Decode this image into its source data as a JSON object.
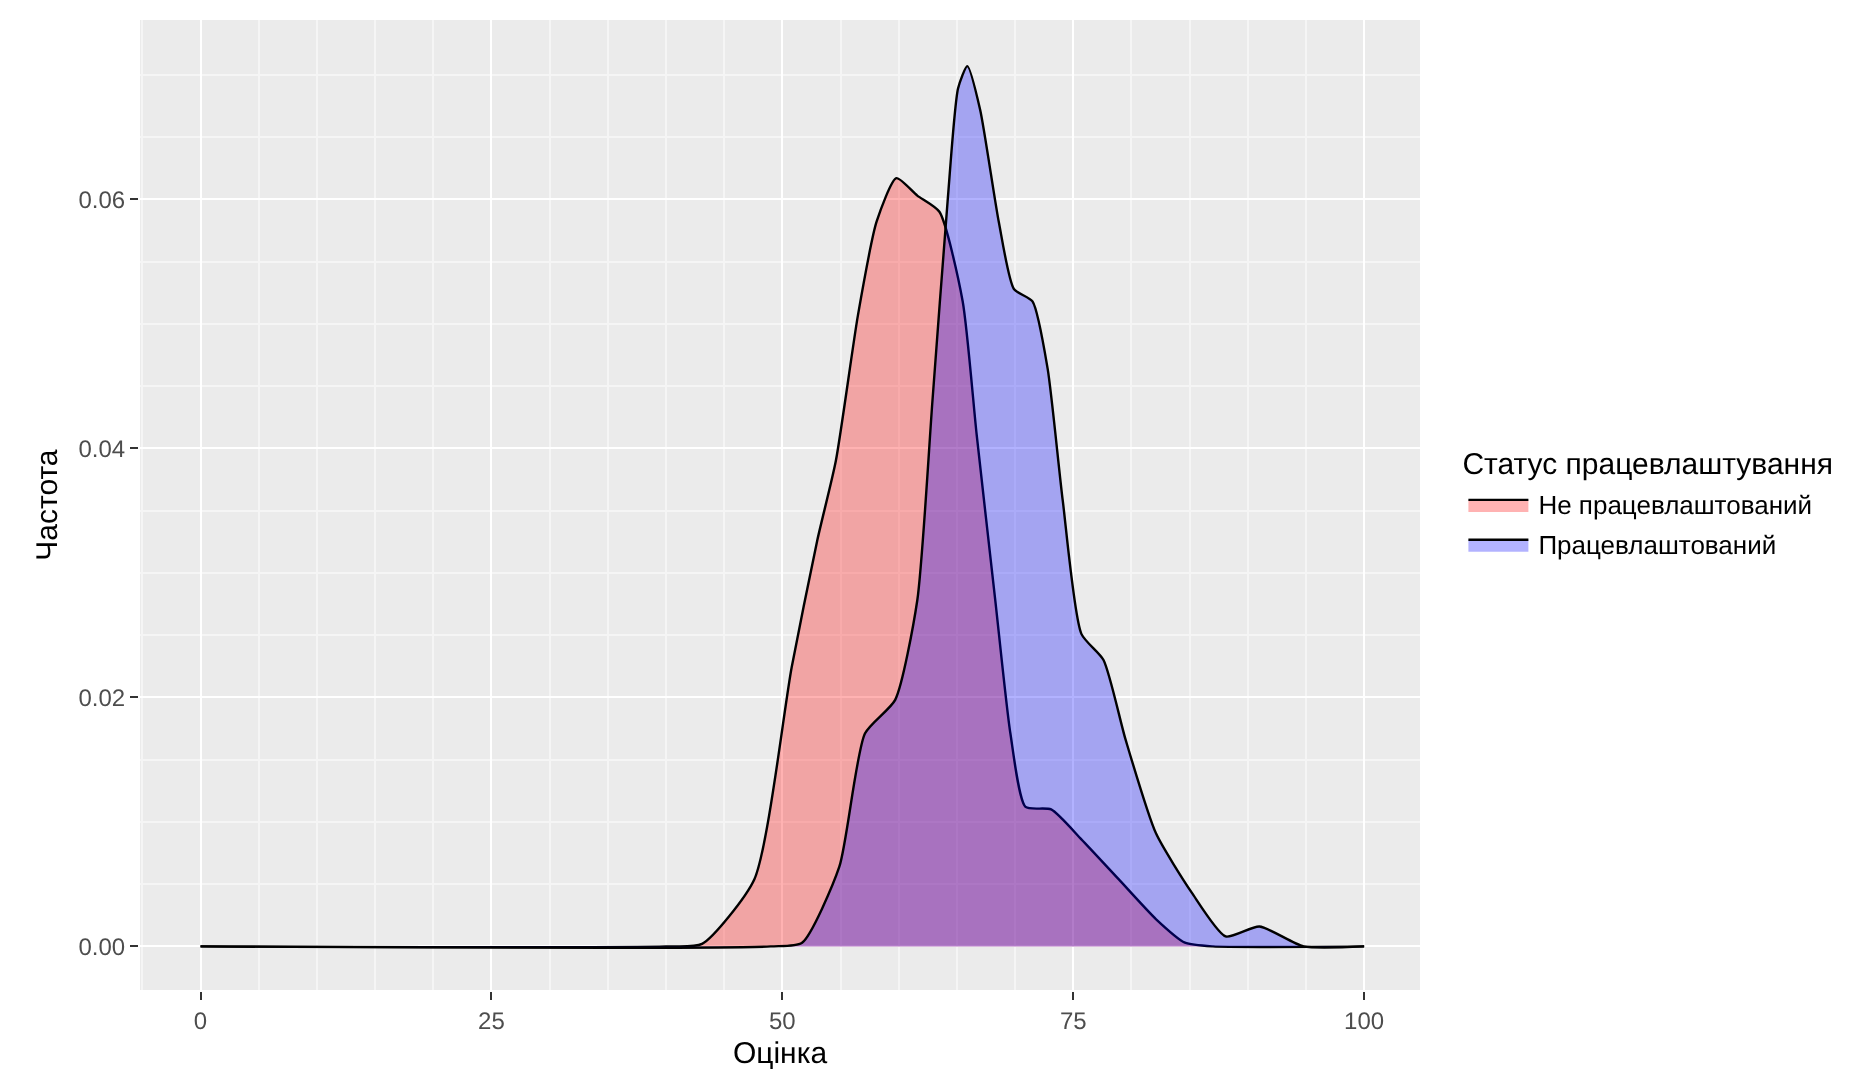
{
  "chart_data": {
    "type": "area",
    "xlabel": "Оцінка",
    "ylabel": "Частота",
    "legend_title": "Статус працевлаштування",
    "xlim": [
      -5.2,
      104.8
    ],
    "ylim": [
      -0.0035,
      0.0744
    ],
    "xticks": [
      0,
      25,
      50,
      75,
      100
    ],
    "yticks": [
      {
        "value": 0,
        "label": "0.00"
      },
      {
        "value": 0.02,
        "label": "0.02"
      },
      {
        "value": 0.04,
        "label": "0.04"
      },
      {
        "value": 0.06,
        "label": "0.06"
      }
    ],
    "grid": true,
    "legend": "right",
    "series": [
      {
        "name": "Не працевлаштований",
        "color": "#ff0000",
        "x": [
          0,
          40,
          43.1,
          47.6,
          50.8,
          53.0,
          54.6,
          56.5,
          58.1,
          59.8,
          61.6,
          63.5,
          65.5,
          66.7,
          68.3,
          69.6,
          70.9,
          73.1,
          75.7,
          78.9,
          82.1,
          84.6,
          87,
          100
        ],
        "values": [
          0,
          0,
          0.0002,
          0.0054,
          0.0224,
          0.0326,
          0.039,
          0.0507,
          0.0582,
          0.0617,
          0.0603,
          0.059,
          0.0518,
          0.0411,
          0.0278,
          0.0171,
          0.0112,
          0.011,
          0.0086,
          0.0054,
          0.0022,
          0.0003,
          0,
          0
        ]
      },
      {
        "name": "Працевлаштований",
        "color": "#0000ff",
        "x": [
          0,
          49,
          51.7,
          54.9,
          57.1,
          59.7,
          61.6,
          62.9,
          64.2,
          65.1,
          65.9,
          67.0,
          68.6,
          69.9,
          71.5,
          72.8,
          74.1,
          75.7,
          77.6,
          79.5,
          82.1,
          85.2,
          88.1,
          91.0,
          94.8,
          100
        ],
        "values": [
          0,
          0,
          0.0003,
          0.0064,
          0.0171,
          0.0198,
          0.0278,
          0.0438,
          0.0598,
          0.0689,
          0.0707,
          0.0672,
          0.0582,
          0.0528,
          0.0518,
          0.0464,
          0.0358,
          0.0251,
          0.023,
          0.0166,
          0.0091,
          0.0043,
          0.0008,
          0.0016,
          0,
          0
        ]
      }
    ]
  }
}
